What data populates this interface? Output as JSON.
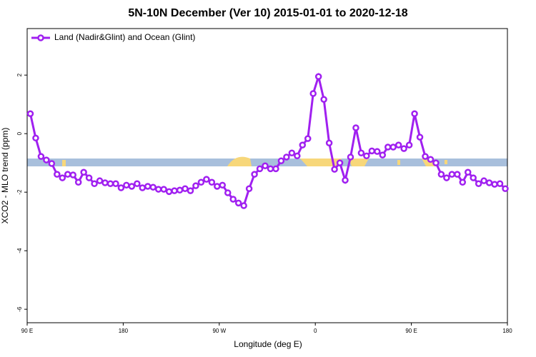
{
  "chart_data": {
    "type": "line",
    "title": "5N-10N December (Ver 10)   2015-01-01 to 2020-12-18",
    "xlabel": "Longitude (deg E)",
    "ylabel": "XCO2 - MLO trend (ppm)",
    "x": [
      93,
      98,
      103,
      108,
      113,
      118,
      123,
      128,
      133,
      138,
      143,
      148,
      153,
      158,
      163,
      168,
      173,
      178,
      183,
      188,
      193,
      198,
      203,
      208,
      213,
      218,
      223,
      228,
      233,
      238,
      243,
      248,
      253,
      258,
      263,
      268,
      273,
      278,
      283,
      288,
      293,
      298,
      303,
      308,
      313,
      318,
      323,
      328,
      333,
      338,
      343,
      348,
      353,
      358,
      363,
      368,
      373,
      378,
      383,
      388,
      393,
      398,
      403,
      408,
      413,
      418,
      423,
      428,
      433,
      438,
      443,
      448,
      453,
      458,
      463,
      468,
      473,
      478,
      483,
      488,
      493,
      498,
      503,
      508,
      513,
      518,
      523,
      528,
      533,
      538
    ],
    "series": [
      {
        "name": "Land (Nadir&Glint) and Ocean (Glint)",
        "color": "#a020f0",
        "values": [
          0.68,
          -0.15,
          -0.78,
          -0.9,
          -1.02,
          -1.39,
          -1.51,
          -1.39,
          -1.41,
          -1.66,
          -1.32,
          -1.51,
          -1.71,
          -1.61,
          -1.68,
          -1.71,
          -1.71,
          -1.85,
          -1.76,
          -1.8,
          -1.71,
          -1.85,
          -1.8,
          -1.83,
          -1.9,
          -1.9,
          -1.98,
          -1.95,
          -1.93,
          -1.88,
          -1.95,
          -1.78,
          -1.66,
          -1.56,
          -1.66,
          -1.8,
          -1.76,
          -2.02,
          -2.24,
          -2.37,
          -2.46,
          -1.88,
          -1.39,
          -1.2,
          -1.1,
          -1.2,
          -1.2,
          -0.93,
          -0.8,
          -0.66,
          -0.76,
          -0.39,
          -0.17,
          1.37,
          1.95,
          1.17,
          -0.32,
          -1.22,
          -1.0,
          -1.59,
          -0.8,
          0.2,
          -0.66,
          -0.76,
          -0.59,
          -0.61,
          -0.73,
          -0.46,
          -0.46,
          -0.39,
          -0.51,
          -0.39,
          0.68,
          -0.12,
          -0.78,
          -0.88,
          -1.0,
          -1.39,
          -1.51,
          -1.39,
          -1.39,
          -1.66,
          -1.32,
          -1.51,
          -1.71,
          -1.61,
          -1.68,
          -1.73,
          -1.71,
          -1.88
        ]
      }
    ],
    "xlim": [
      90,
      540
    ],
    "xticks": [
      {
        "value": 90,
        "label": "90 E"
      },
      180,
      {
        "value": 270,
        "label": "90 W"
      },
      {
        "value": 360,
        "label": "0"
      },
      {
        "value": 450,
        "label": "90 E"
      },
      {
        "value": 540,
        "label": "180"
      }
    ],
    "ylim": [
      -6.46,
      3.59
    ],
    "yticks": [
      -6,
      -4,
      -2,
      0,
      2
    ],
    "legend": "top-left"
  }
}
